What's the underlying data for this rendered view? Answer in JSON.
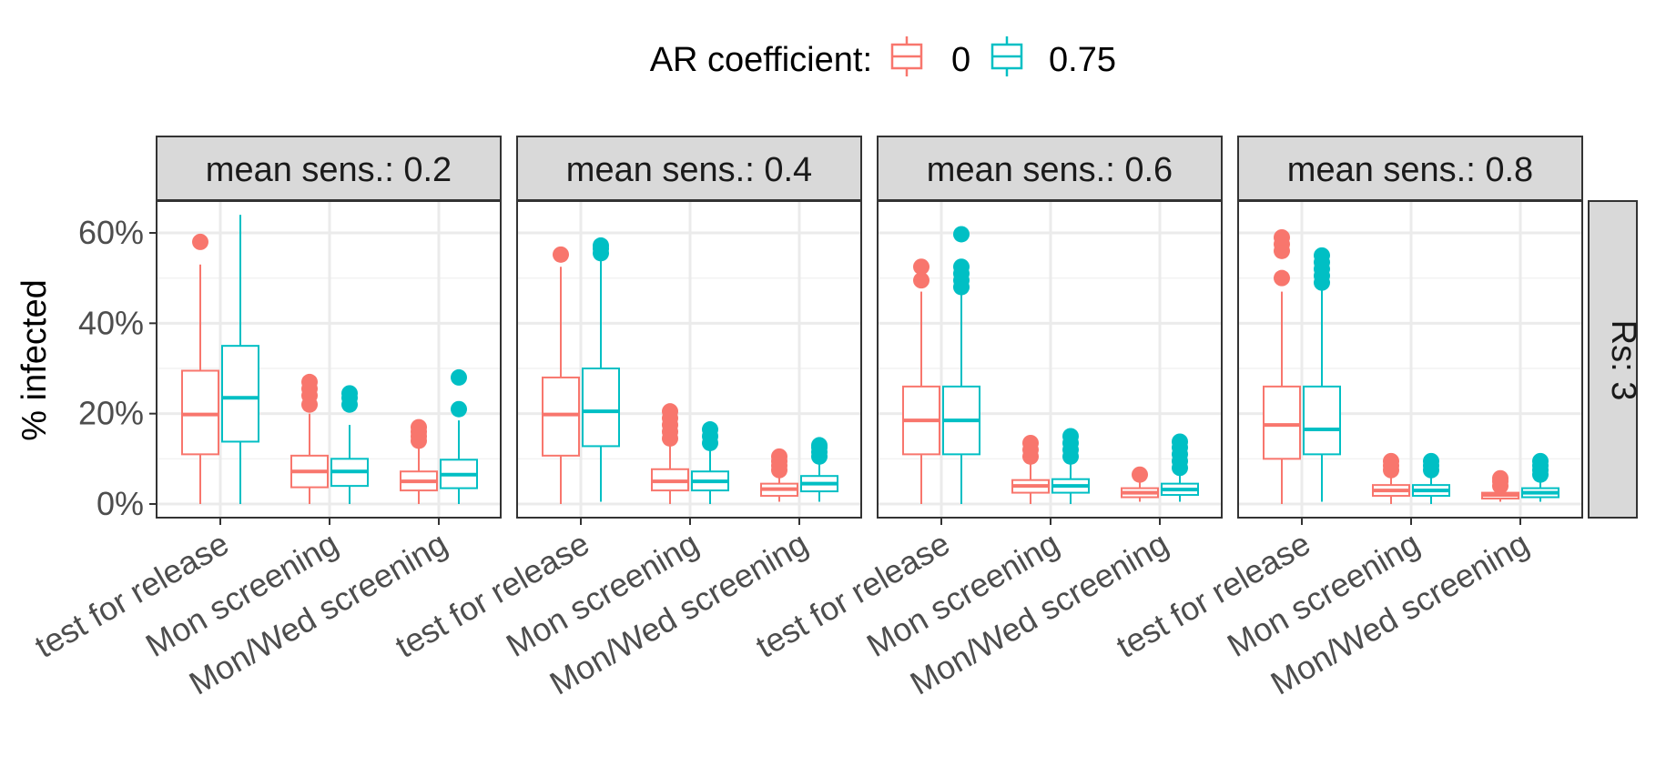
{
  "chart_data": {
    "type": "boxplot",
    "ylabel": "% infected",
    "xlabel": "",
    "ylim": [
      0,
      0.64
    ],
    "y_ticks": [
      0,
      0.2,
      0.4,
      0.6
    ],
    "y_tick_labels": [
      "0%",
      "20%",
      "40%",
      "60%"
    ],
    "grid": true,
    "legend": {
      "title": "AR coefficient:",
      "position": "top",
      "entries": [
        {
          "label": "0",
          "color": "#F8766D"
        },
        {
          "label": "0.75",
          "color": "#00BFC4"
        }
      ]
    },
    "categories": [
      "test for release",
      "Mon screening",
      "Mon/Wed screening"
    ],
    "row_facet_label": "Rs: 3",
    "facets": [
      {
        "label": "mean sens.: 0.2",
        "series": [
          {
            "group": "0",
            "boxes": [
              {
                "min": 0.0,
                "q1": 0.11,
                "median": 0.198,
                "q3": 0.295,
                "max": 0.53,
                "outliers": [
                  0.58
                ]
              },
              {
                "min": 0.0,
                "q1": 0.037,
                "median": 0.072,
                "q3": 0.107,
                "max": 0.2,
                "outliers": [
                  0.22,
                  0.24,
                  0.255,
                  0.27
                ]
              },
              {
                "min": 0.0,
                "q1": 0.03,
                "median": 0.05,
                "q3": 0.072,
                "max": 0.13,
                "outliers": [
                  0.14,
                  0.15,
                  0.16,
                  0.17
                ]
              }
            ]
          },
          {
            "group": "0.75",
            "boxes": [
              {
                "min": 0.0,
                "q1": 0.138,
                "median": 0.235,
                "q3": 0.35,
                "max": 0.64,
                "outliers": []
              },
              {
                "min": 0.0,
                "q1": 0.04,
                "median": 0.072,
                "q3": 0.1,
                "max": 0.175,
                "outliers": [
                  0.22,
                  0.235,
                  0.245
                ]
              },
              {
                "min": 0.0,
                "q1": 0.035,
                "median": 0.065,
                "q3": 0.098,
                "max": 0.185,
                "outliers": [
                  0.21,
                  0.28
                ]
              }
            ]
          }
        ]
      },
      {
        "label": "mean sens.: 0.4",
        "series": [
          {
            "group": "0",
            "boxes": [
              {
                "min": 0.0,
                "q1": 0.107,
                "median": 0.198,
                "q3": 0.28,
                "max": 0.525,
                "outliers": [
                  0.552
                ]
              },
              {
                "min": 0.0,
                "q1": 0.03,
                "median": 0.05,
                "q3": 0.077,
                "max": 0.135,
                "outliers": [
                  0.145,
                  0.16,
                  0.175,
                  0.19,
                  0.205
                ]
              },
              {
                "min": 0.005,
                "q1": 0.018,
                "median": 0.033,
                "q3": 0.045,
                "max": 0.065,
                "outliers": [
                  0.075,
                  0.085,
                  0.095,
                  0.105
                ]
              }
            ]
          },
          {
            "group": "0.75",
            "boxes": [
              {
                "min": 0.005,
                "q1": 0.128,
                "median": 0.205,
                "q3": 0.3,
                "max": 0.545,
                "outliers": [
                  0.555,
                  0.565,
                  0.572
                ]
              },
              {
                "min": 0.0,
                "q1": 0.03,
                "median": 0.05,
                "q3": 0.072,
                "max": 0.12,
                "outliers": [
                  0.135,
                  0.15,
                  0.165
                ]
              },
              {
                "min": 0.005,
                "q1": 0.028,
                "median": 0.045,
                "q3": 0.062,
                "max": 0.095,
                "outliers": [
                  0.105,
                  0.115,
                  0.125,
                  0.13
                ]
              }
            ]
          }
        ]
      },
      {
        "label": "mean sens.: 0.6",
        "series": [
          {
            "group": "0",
            "boxes": [
              {
                "min": 0.0,
                "q1": 0.11,
                "median": 0.185,
                "q3": 0.26,
                "max": 0.47,
                "outliers": [
                  0.495,
                  0.525
                ]
              },
              {
                "min": 0.0,
                "q1": 0.025,
                "median": 0.04,
                "q3": 0.053,
                "max": 0.09,
                "outliers": [
                  0.105,
                  0.12,
                  0.135
                ]
              },
              {
                "min": 0.005,
                "q1": 0.015,
                "median": 0.025,
                "q3": 0.035,
                "max": 0.05,
                "outliers": [
                  0.065
                ]
              }
            ]
          },
          {
            "group": "0.75",
            "boxes": [
              {
                "min": 0.0,
                "q1": 0.11,
                "median": 0.185,
                "q3": 0.26,
                "max": 0.47,
                "outliers": [
                  0.48,
                  0.495,
                  0.51,
                  0.525,
                  0.597
                ]
              },
              {
                "min": 0.0,
                "q1": 0.025,
                "median": 0.04,
                "q3": 0.055,
                "max": 0.09,
                "outliers": [
                  0.105,
                  0.12,
                  0.135,
                  0.15
                ]
              },
              {
                "min": 0.005,
                "q1": 0.02,
                "median": 0.032,
                "q3": 0.045,
                "max": 0.07,
                "outliers": [
                  0.08,
                  0.095,
                  0.11,
                  0.125,
                  0.138
                ]
              }
            ]
          }
        ]
      },
      {
        "label": "mean sens.: 0.8",
        "series": [
          {
            "group": "0",
            "boxes": [
              {
                "min": 0.0,
                "q1": 0.1,
                "median": 0.175,
                "q3": 0.26,
                "max": 0.47,
                "outliers": [
                  0.5,
                  0.56,
                  0.575,
                  0.59
                ]
              },
              {
                "min": 0.0,
                "q1": 0.018,
                "median": 0.03,
                "q3": 0.042,
                "max": 0.065,
                "outliers": [
                  0.075,
                  0.085,
                  0.095
                ]
              },
              {
                "min": 0.005,
                "q1": 0.012,
                "median": 0.02,
                "q3": 0.025,
                "max": 0.03,
                "outliers": [
                  0.04,
                  0.05,
                  0.057
                ]
              }
            ]
          },
          {
            "group": "0.75",
            "boxes": [
              {
                "min": 0.005,
                "q1": 0.11,
                "median": 0.165,
                "q3": 0.26,
                "max": 0.48,
                "outliers": [
                  0.49,
                  0.505,
                  0.52,
                  0.535,
                  0.55
                ]
              },
              {
                "min": 0.0,
                "q1": 0.018,
                "median": 0.03,
                "q3": 0.042,
                "max": 0.065,
                "outliers": [
                  0.075,
                  0.085,
                  0.095
                ]
              },
              {
                "min": 0.005,
                "q1": 0.015,
                "median": 0.025,
                "q3": 0.035,
                "max": 0.06,
                "outliers": [
                  0.065,
                  0.075,
                  0.085,
                  0.095
                ]
              }
            ]
          }
        ]
      }
    ]
  }
}
